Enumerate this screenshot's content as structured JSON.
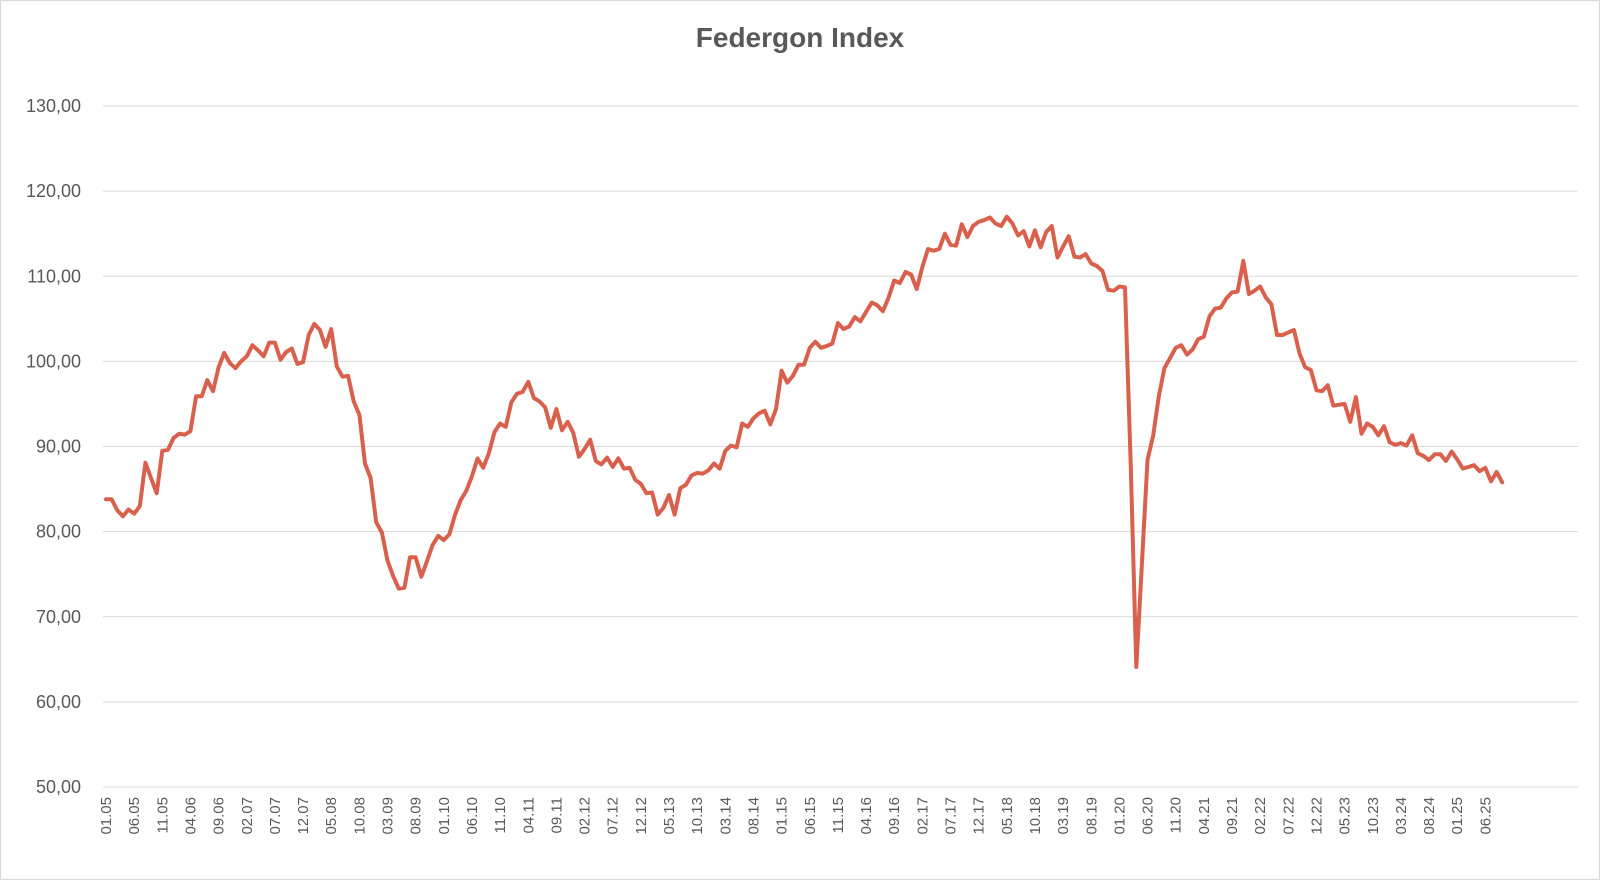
{
  "chart_data": {
    "type": "line",
    "title": "Federgon Index",
    "xlabel": "",
    "ylabel": "",
    "ylim": [
      50,
      130
    ],
    "yticks": [
      "50,00",
      "60,00",
      "70,00",
      "80,00",
      "90,00",
      "100,00",
      "110,00",
      "120,00",
      "130,00"
    ],
    "xticks": [
      "01.05",
      "06.05",
      "11.05",
      "04.06",
      "09.06",
      "02.07",
      "07.07",
      "12.07",
      "05.08",
      "10.08",
      "03.09",
      "08.09",
      "01.10",
      "06.10",
      "11.10",
      "04.11",
      "09.11",
      "02.12",
      "07.12",
      "12.12",
      "05.13",
      "10.13",
      "03.14",
      "08.14",
      "01.15",
      "06.15",
      "11.15",
      "04.16",
      "09.16",
      "02.17",
      "07.17",
      "12.17",
      "05.18",
      "10.18",
      "03.19",
      "08.19",
      "01.20",
      "06.20",
      "11.20",
      "04.21",
      "09.21",
      "02.22",
      "07.22",
      "12.22",
      "05.23",
      "10.23",
      "03.24",
      "08.24",
      "01.25",
      "06.25"
    ],
    "grid": true,
    "legend": "none",
    "line_color": "#d9604c",
    "series": [
      {
        "name": "",
        "values": [
          83.8,
          83.8,
          82.5,
          81.8,
          82.6,
          82.1,
          83.0,
          88.1,
          86.3,
          84.5,
          89.5,
          89.6,
          91.0,
          91.5,
          91.4,
          91.8,
          95.9,
          95.9,
          97.8,
          96.5,
          99.3,
          101.0,
          99.8,
          99.2,
          100.0,
          100.6,
          101.9,
          101.3,
          100.6,
          102.2,
          102.2,
          100.2,
          101.1,
          101.5,
          99.7,
          99.9,
          103.1,
          104.4,
          103.7,
          101.7,
          103.8,
          99.4,
          98.2,
          98.3,
          95.3,
          93.7,
          88.0,
          86.3,
          81.1,
          79.9,
          76.6,
          74.8,
          73.3,
          73.4,
          77.0,
          77.0,
          74.7,
          76.5,
          78.4,
          79.5,
          79.0,
          79.7,
          82.0,
          83.7,
          84.8,
          86.5,
          88.6,
          87.5,
          89.2,
          91.7,
          92.7,
          92.3,
          95.2,
          96.2,
          96.4,
          97.6,
          95.7,
          95.3,
          94.6,
          92.2,
          94.4,
          91.9,
          92.9,
          91.6,
          88.8,
          89.7,
          90.8,
          88.3,
          87.9,
          88.7,
          87.6,
          88.6,
          87.4,
          87.5,
          86.1,
          85.6,
          84.5,
          84.6,
          82.0,
          82.8,
          84.3,
          82.0,
          85.1,
          85.5,
          86.6,
          86.9,
          86.8,
          87.2,
          88.0,
          87.4,
          89.5,
          90.1,
          89.9,
          92.7,
          92.3,
          93.3,
          93.9,
          94.2,
          92.6,
          94.4,
          98.9,
          97.5,
          98.3,
          99.6,
          99.6,
          101.6,
          102.3,
          101.6,
          101.8,
          102.1,
          104.5,
          103.8,
          104.1,
          105.2,
          104.7,
          105.8,
          106.9,
          106.6,
          105.9,
          107.5,
          109.5,
          109.2,
          110.5,
          110.2,
          108.5,
          111.1,
          113.2,
          113.0,
          113.2,
          115.0,
          113.7,
          113.6,
          116.1,
          114.6,
          115.9,
          116.4,
          116.6,
          116.9,
          116.2,
          115.9,
          117.0,
          116.2,
          114.8,
          115.3,
          113.5,
          115.4,
          113.4,
          115.2,
          115.9,
          112.2,
          113.5,
          114.7,
          112.3,
          112.2,
          112.6,
          111.5,
          111.2,
          110.6,
          108.4,
          108.3,
          108.8,
          108.7,
          88.0,
          64.1,
          76.2,
          88.4,
          91.3,
          95.9,
          99.2,
          100.4,
          101.6,
          101.9,
          100.8,
          101.4,
          102.6,
          102.9,
          105.3,
          106.2,
          106.3,
          107.4,
          108.1,
          108.2,
          111.8,
          107.9,
          108.3,
          108.8,
          107.5,
          106.7,
          103.1,
          103.1,
          103.4,
          103.7,
          100.9,
          99.3,
          99.0,
          96.6,
          96.5,
          97.2,
          94.8,
          94.9,
          95.0,
          92.9,
          95.8,
          91.5,
          92.7,
          92.3,
          91.3,
          92.4,
          90.5,
          90.2,
          90.4,
          90.1,
          91.3,
          89.2,
          88.9,
          88.4,
          89.1,
          89.1,
          88.3,
          89.4,
          88.5,
          87.4,
          87.6,
          87.8,
          87.1,
          87.5,
          85.9,
          87.0,
          85.8
        ]
      }
    ]
  }
}
